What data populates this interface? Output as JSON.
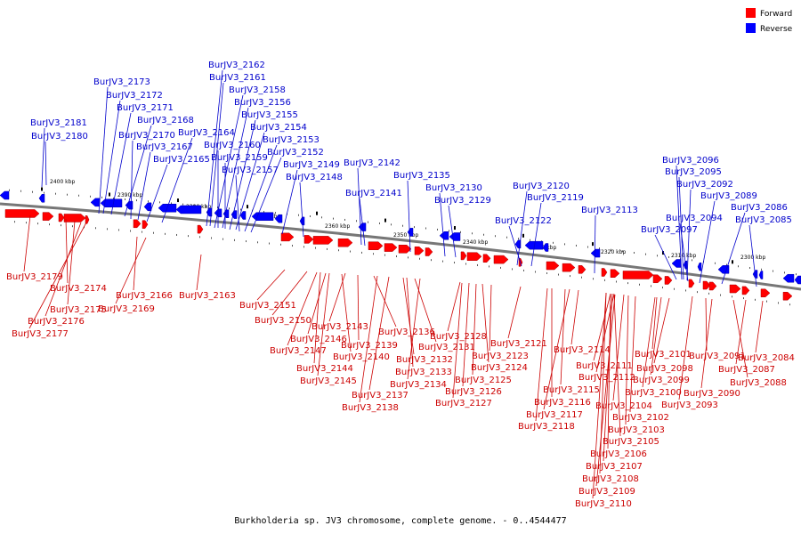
{
  "colors": {
    "forward": "#ff0000",
    "reverse": "#0000ff",
    "backbone": "#777777",
    "label_forward": "#cc0000",
    "label_reverse": "#0000cc"
  },
  "legend": {
    "forward_label": "Forward",
    "reverse_label": "Reverse"
  },
  "caption": "Burkholderia sp. JV3 chromosome, complete genome. - 0..4544477",
  "scale_labels": [
    "2400 kbp",
    "2390 kbp",
    "2380 kbp",
    "2370 kbp",
    "2360 kbp",
    "2350 kbp",
    "2340 kbp",
    "2330 kbp",
    "2320 kbp",
    "2310 kbp",
    "2300 kbp"
  ],
  "reverse_genes": [
    "BurJV3_2181",
    "BurJV3_2180",
    "BurJV3_2173",
    "BurJV3_2172",
    "BurJV3_2171",
    "BurJV3_2168",
    "BurJV3_2170",
    "BurJV3_2167",
    "BurJV3_2165",
    "BurJV3_2164",
    "BurJV3_2162",
    "BurJV3_2161",
    "BurJV3_2158",
    "BurJV3_2156",
    "BurJV3_2155",
    "BurJV3_2154",
    "BurJV3_2160",
    "BurJV3_2159",
    "BurJV3_2153",
    "BurJV3_2157",
    "BurJV3_2152",
    "BurJV3_2149",
    "BurJV3_2148",
    "BurJV3_2142",
    "BurJV3_2141",
    "BurJV3_2135",
    "BurJV3_2130",
    "BurJV3_2129",
    "BurJV3_2120",
    "BurJV3_2119",
    "BurJV3_2122",
    "BurJV3_2113",
    "BurJV3_2096",
    "BurJV3_2095",
    "BurJV3_2092",
    "BurJV3_2089",
    "BurJV3_2094",
    "BurJV3_2097",
    "BurJV3_2086",
    "BurJV3_2085"
  ],
  "forward_genes": [
    "BurJV3_2179",
    "BurJV3_2174",
    "BurJV3_2175",
    "BurJV3_2176",
    "BurJV3_2177",
    "BurJV3_2166",
    "BurJV3_2169",
    "BurJV3_2163",
    "BurJV3_2151",
    "BurJV3_2150",
    "BurJV3_2146",
    "BurJV3_2147",
    "BurJV3_2143",
    "BurJV3_2144",
    "BurJV3_2145",
    "BurJV3_2136",
    "BurJV3_2139",
    "BurJV3_2140",
    "BurJV3_2131",
    "BurJV3_2132",
    "BurJV3_2133",
    "BurJV3_2134",
    "BurJV3_2137",
    "BurJV3_2138",
    "BurJV3_2128",
    "BurJV3_2123",
    "BurJV3_2124",
    "BurJV3_2125",
    "BurJV3_2126",
    "BurJV3_2127",
    "BurJV3_2121",
    "BurJV3_2114",
    "BurJV3_2111",
    "BurJV3_2112",
    "BurJV3_2115",
    "BurJV3_2116",
    "BurJV3_2117",
    "BurJV3_2118",
    "BurJV3_2101",
    "BurJV3_2098",
    "BurJV3_2099",
    "BurJV3_2100",
    "BurJV3_2104",
    "BurJV3_2102",
    "BurJV3_2103",
    "BurJV3_2105",
    "BurJV3_2106",
    "BurJV3_2107",
    "BurJV3_2108",
    "BurJV3_2109",
    "BurJV3_2110",
    "BurJV3_2091",
    "BurJV3_2093",
    "BurJV3_2090",
    "BurJV3_2084",
    "BurJV3_2087",
    "BurJV3_2088"
  ]
}
